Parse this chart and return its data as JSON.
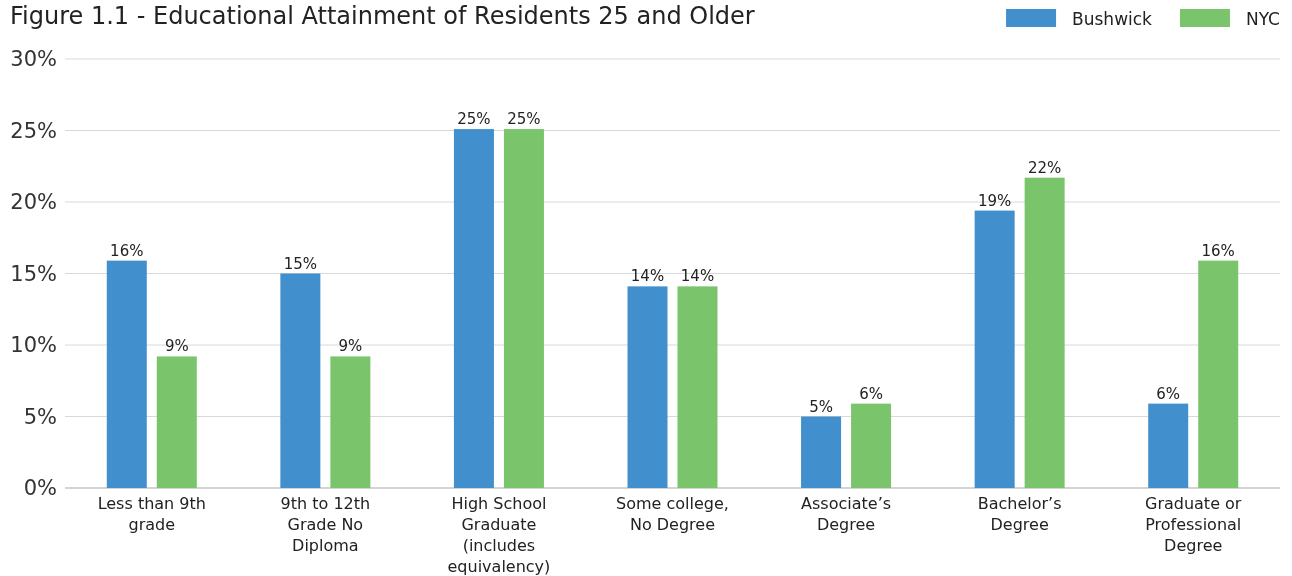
{
  "chart_data": {
    "type": "bar",
    "title": "Figure 1.1 - Educational Attainment of Residents 25 and Older",
    "categories": [
      "Less than 9th grade",
      "9th to 12th Grade No Diploma",
      "High School Graduate (includes equivalency)",
      "Some college, No Degree",
      "Associate’s Degree",
      "Bachelor’s Degree",
      "Graduate or Professional Degree"
    ],
    "series": [
      {
        "name": "Bushwick",
        "color": "#428fcd",
        "values": [
          15.9,
          15.0,
          25.1,
          14.1,
          5.0,
          19.4,
          5.9
        ],
        "value_labels": [
          "16%",
          "15%",
          "25%",
          "14%",
          "5%",
          "19%",
          "6%"
        ]
      },
      {
        "name": "NYC",
        "color": "#7ac46b",
        "values": [
          9.2,
          9.2,
          25.1,
          14.1,
          5.9,
          21.7,
          15.9
        ],
        "value_labels": [
          "9%",
          "9%",
          "25%",
          "14%",
          "6%",
          "22%",
          "16%"
        ]
      }
    ],
    "ylim": [
      0,
      30
    ],
    "yticks": [
      {
        "value": 0,
        "label": "0%"
      },
      {
        "value": 5,
        "label": "5%"
      },
      {
        "value": 10,
        "label": "10%"
      },
      {
        "value": 15,
        "label": "15%"
      },
      {
        "value": 20,
        "label": "20%"
      },
      {
        "value": 25,
        "label": "25%"
      },
      {
        "value": 30,
        "label": "30%"
      }
    ],
    "grid": "y",
    "legend": "top right"
  }
}
